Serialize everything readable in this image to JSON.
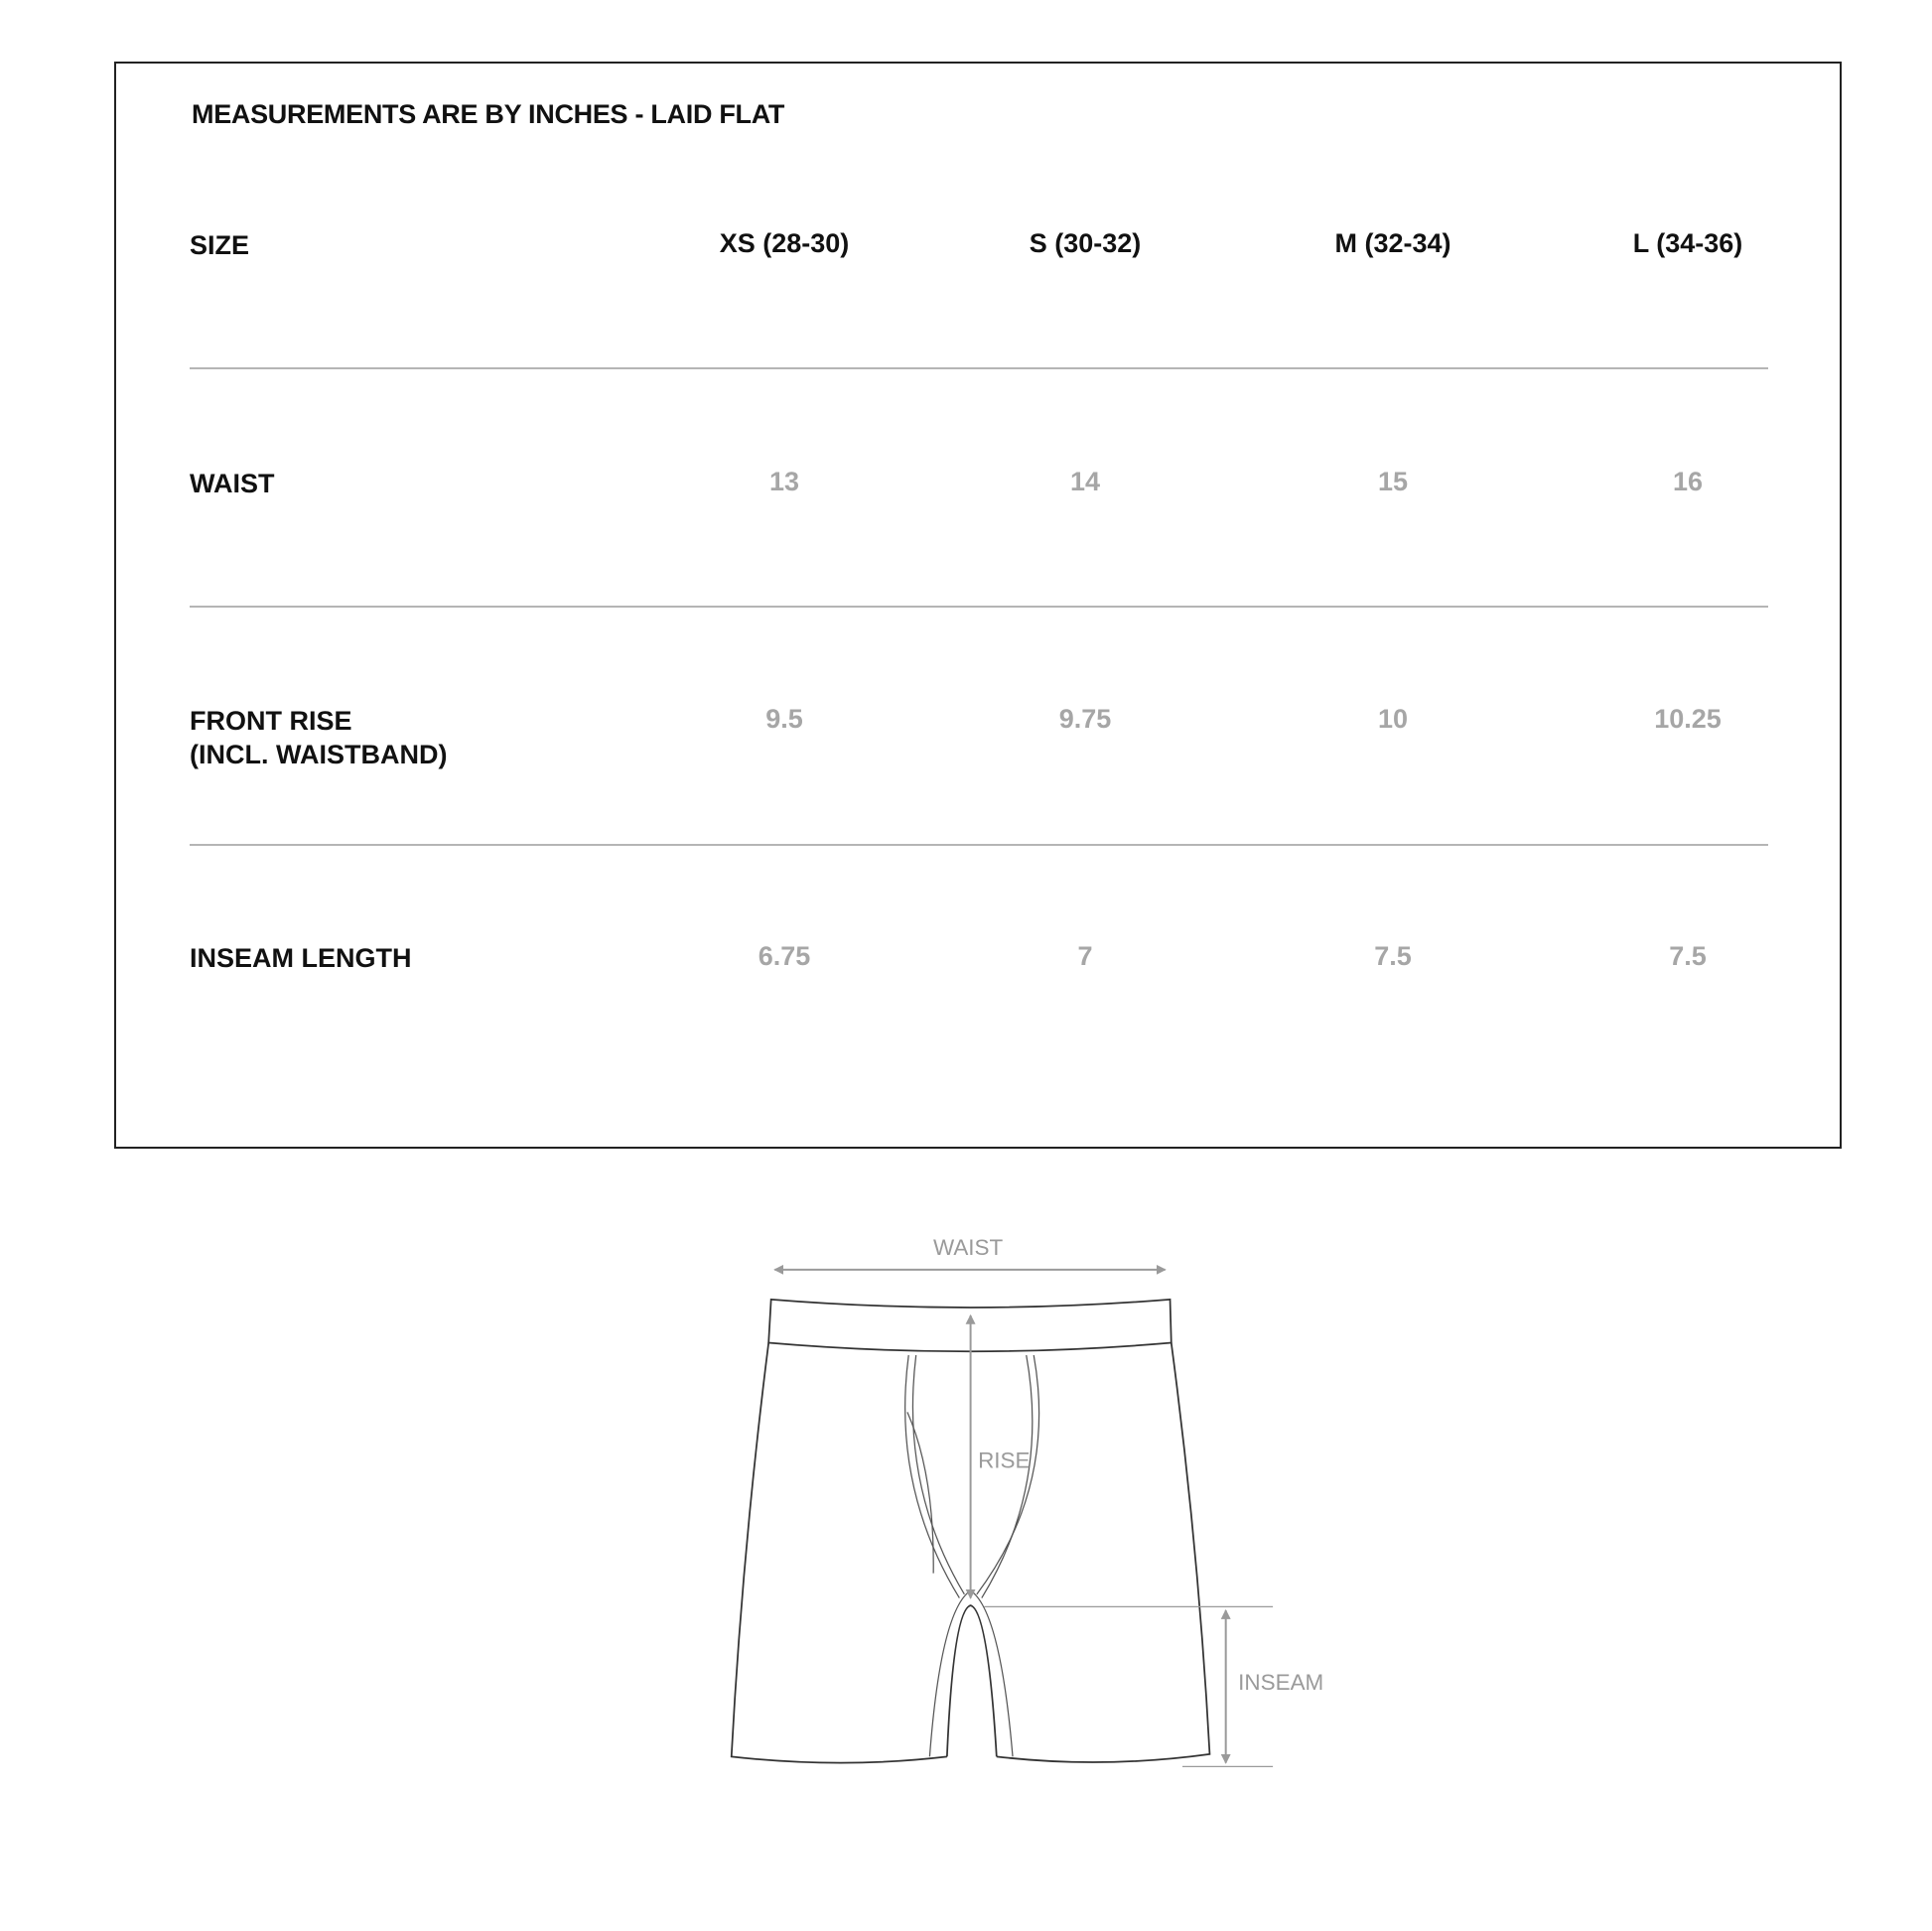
{
  "title": "MEASUREMENTS ARE BY INCHES - LAID FLAT",
  "table": {
    "header_label": "SIZE",
    "sizes": [
      "XS (28-30)",
      "S (30-32)",
      "M (32-34)",
      "L (34-36)"
    ],
    "rows": [
      {
        "label": "WAIST",
        "label2": "",
        "values": [
          "13",
          "14",
          "15",
          "16"
        ]
      },
      {
        "label": "FRONT RISE",
        "label2": "(INCL. WAISTBAND)",
        "values": [
          "9.5",
          "9.75",
          "10",
          "10.25"
        ]
      },
      {
        "label": "INSEAM LENGTH",
        "label2": "",
        "values": [
          "6.75",
          "7",
          "7.5",
          "7.5"
        ]
      }
    ]
  },
  "diagram": {
    "waist_label": "WAIST",
    "rise_label": "RISE",
    "inseam_label": "INSEAM",
    "line_color": "#333333",
    "measure_color": "#9a9a9a"
  }
}
